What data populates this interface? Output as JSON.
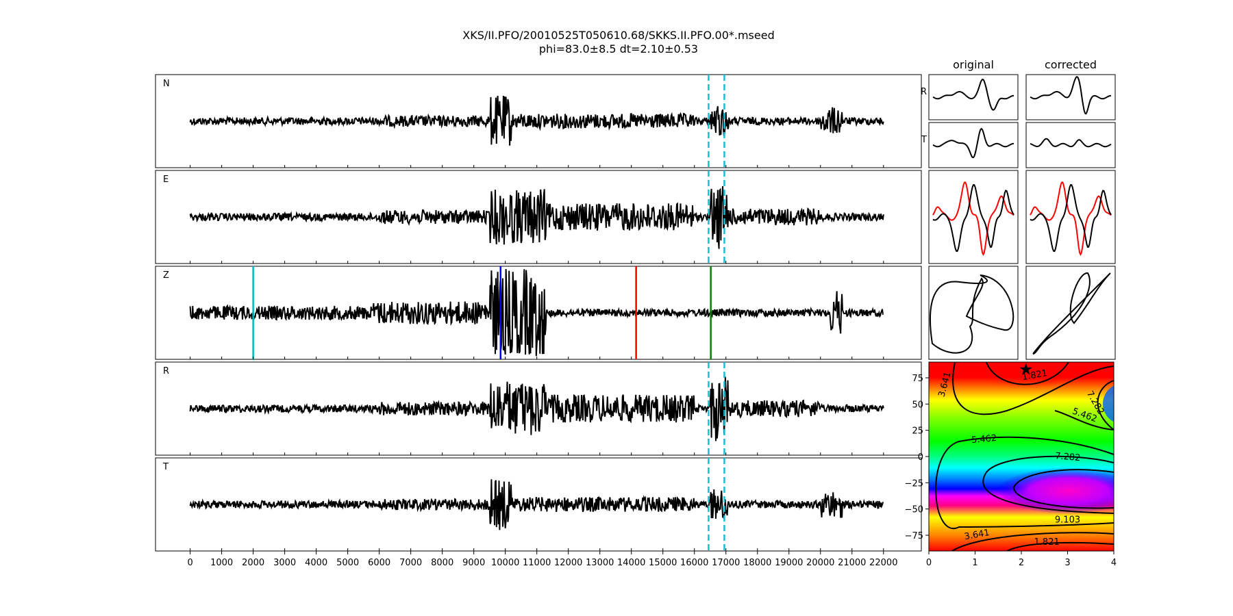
{
  "figure": {
    "title_line1": "XKS/II.PFO/20010525T050610.68/SKKS.II.PFO.00*.mseed",
    "title_line2": "phi=83.0±8.5 dt=2.10±0.53"
  },
  "chart_data": [
    {
      "type": "line",
      "name": "seismogram-traces",
      "xlim": [
        -1100,
        23200
      ],
      "x_ticks": [
        0,
        1000,
        2000,
        3000,
        4000,
        5000,
        6000,
        7000,
        8000,
        9000,
        10000,
        11000,
        12000,
        13000,
        14000,
        15000,
        16000,
        17000,
        18000,
        19000,
        20000,
        21000,
        22000
      ],
      "x_tick_labels": [
        "0",
        "1000",
        "2000",
        "3000",
        "4000",
        "5000",
        "6000",
        "7000",
        "8000",
        "9000",
        "10000",
        "11000",
        "12000",
        "13000",
        "14000",
        "15000",
        "16000",
        "17000",
        "18000",
        "19000",
        "20000",
        "21000",
        "22000"
      ],
      "trace_range": [
        0,
        22000
      ],
      "panels": [
        "N",
        "E",
        "Z",
        "R",
        "T"
      ],
      "time_window": {
        "start": 16450,
        "end": 16950,
        "color": "#17becf",
        "style": "dashed"
      },
      "z_markers": [
        {
          "x": 2000,
          "color": "#00bcbc"
        },
        {
          "x": 9850,
          "color": "#0000ff"
        },
        {
          "x": 14150,
          "color": "#ff0000"
        },
        {
          "x": 16520,
          "color": "#008000"
        }
      ],
      "trace_color": "#000000"
    },
    {
      "type": "line",
      "name": "particle-motion-panels",
      "column_titles": [
        "original",
        "corrected"
      ],
      "row_labels": [
        "R",
        "T"
      ],
      "colors": {
        "trace": "#000000",
        "second": "#ff0000"
      }
    },
    {
      "type": "heatmap",
      "name": "energy-grid",
      "xlim": [
        0,
        4
      ],
      "ylim": [
        -90,
        90
      ],
      "x_ticks": [
        "0",
        "1",
        "2",
        "3",
        "4"
      ],
      "y_ticks": [
        "75",
        "50",
        "25",
        "0",
        "−25",
        "−50",
        "−75"
      ],
      "y_tick_values": [
        75,
        50,
        25,
        0,
        -25,
        -50,
        -75
      ],
      "colormap": "hsv",
      "contour_labels": [
        "3.641",
        "1.821",
        "7.282",
        "5.462",
        "5.462",
        "7.282",
        "9.103",
        "3.641",
        "1.821"
      ],
      "star": {
        "dt": 2.1,
        "phi": 83.0,
        "color": "#000000"
      }
    }
  ]
}
